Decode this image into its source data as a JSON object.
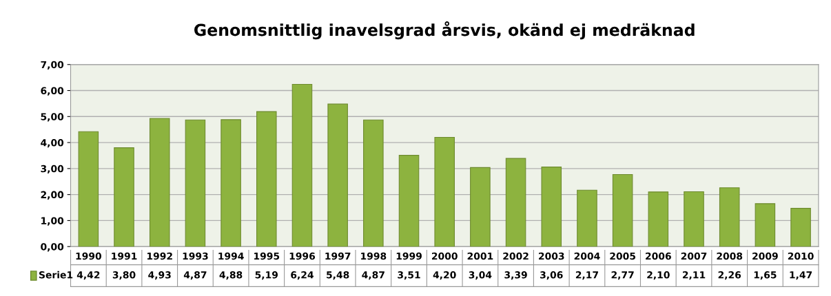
{
  "chart_data": {
    "type": "bar",
    "title": "Genomsnittlig inavelsgrad årsvis, okänd ej medräknad",
    "categories": [
      "1990",
      "1991",
      "1992",
      "1993",
      "1994",
      "1995",
      "1996",
      "1997",
      "1998",
      "1999",
      "2000",
      "2001",
      "2002",
      "2003",
      "2004",
      "2005",
      "2006",
      "2007",
      "2008",
      "2009",
      "2010"
    ],
    "series": [
      {
        "name": "Serie1",
        "color": "#8db33f",
        "values": [
          4.42,
          3.8,
          4.93,
          4.87,
          4.88,
          5.19,
          6.24,
          5.48,
          4.87,
          3.51,
          4.2,
          3.04,
          3.39,
          3.06,
          2.17,
          2.77,
          2.1,
          2.11,
          2.26,
          1.65,
          1.47
        ],
        "value_labels": [
          "4,42",
          "3,80",
          "4,93",
          "4,87",
          "4,88",
          "5,19",
          "6,24",
          "5,48",
          "4,87",
          "3,51",
          "4,20",
          "3,04",
          "3,39",
          "3,06",
          "2,17",
          "2,77",
          "2,10",
          "2,11",
          "2,26",
          "1,65",
          "1,47"
        ]
      }
    ],
    "ylim": [
      0,
      7
    ],
    "yticks": [
      {
        "value": 0,
        "label": "0,00"
      },
      {
        "value": 1,
        "label": "1,00"
      },
      {
        "value": 2,
        "label": "2,00"
      },
      {
        "value": 3,
        "label": "3,00"
      },
      {
        "value": 4,
        "label": "4,00"
      },
      {
        "value": 5,
        "label": "5,00"
      },
      {
        "value": 6,
        "label": "6,00"
      },
      {
        "value": 7,
        "label": "7,00"
      }
    ],
    "grid": "y",
    "legend": "bottom"
  }
}
